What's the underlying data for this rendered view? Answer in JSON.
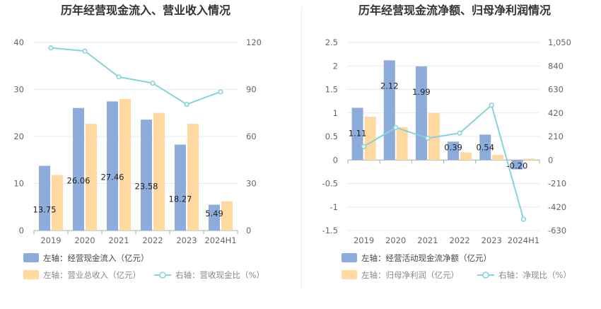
{
  "colors": {
    "bar_blue": "#8eacdb",
    "bar_orange": "#ffd9a0",
    "line_teal": "#84d4dc",
    "grid": "#e5e8ef",
    "divider": "#eeeeee"
  },
  "chart_data": [
    {
      "type": "bar",
      "title": "历年经营现金流入、营业收入情况",
      "categories": [
        "2019",
        "2020",
        "2021",
        "2022",
        "2023",
        "2024H1"
      ],
      "left_axis": {
        "min": 0,
        "max": 40,
        "ticks": [
          "0",
          "10",
          "20",
          "30",
          "40"
        ]
      },
      "right_axis": {
        "min": 0,
        "max": 120,
        "ticks": [
          "0",
          "30",
          "60",
          "90",
          "120"
        ]
      },
      "series": [
        {
          "name": "左轴：经营现金流入（亿元）",
          "kind": "bar",
          "axis": "left",
          "values": [
            13.75,
            26.06,
            27.46,
            23.58,
            18.27,
            5.49
          ],
          "labels": [
            "13.75",
            "26.06",
            "27.46",
            "23.58",
            "18.27",
            "5.49"
          ]
        },
        {
          "name": "左轴：营业总收入（亿元）",
          "kind": "bar",
          "axis": "left",
          "values": [
            11.8,
            22.7,
            28.0,
            25.0,
            22.7,
            6.2
          ]
        },
        {
          "name": "右轴：营收现金比（%）",
          "kind": "line",
          "axis": "right",
          "values": [
            116.5,
            114.5,
            98.0,
            94.0,
            80.5,
            88.5
          ]
        }
      ]
    },
    {
      "type": "bar",
      "title": "历年经营现金流净额、归母净利润情况",
      "categories": [
        "2019",
        "2020",
        "2021",
        "2022",
        "2023",
        "2024H1"
      ],
      "left_axis": {
        "min": -1.5,
        "max": 2.5,
        "ticks": [
          "-1.5",
          "-1",
          "-0.5",
          "0",
          "0.5",
          "1",
          "1.5",
          "2",
          "2.5"
        ]
      },
      "right_axis": {
        "min": -630,
        "max": 1050,
        "ticks": [
          "-630",
          "-420",
          "-210",
          "0",
          "210",
          "420",
          "630",
          "840",
          "1,050"
        ]
      },
      "series": [
        {
          "name": "左轴：经营活动现金流净额（亿元）",
          "kind": "bar",
          "axis": "left",
          "values": [
            1.11,
            2.12,
            1.99,
            0.39,
            0.54,
            -0.2
          ],
          "labels": [
            "1.11",
            "2.12",
            "1.99",
            "0.39",
            "0.54",
            "-0.20"
          ]
        },
        {
          "name": "左轴：归母净利润（亿元）",
          "kind": "bar",
          "axis": "left",
          "values": [
            0.92,
            0.7,
            1.0,
            0.16,
            0.11,
            0.03
          ]
        },
        {
          "name": "右轴：净现比（%）",
          "kind": "line",
          "axis": "right",
          "values": [
            120,
            290,
            195,
            240,
            490,
            -530
          ]
        }
      ]
    }
  ]
}
